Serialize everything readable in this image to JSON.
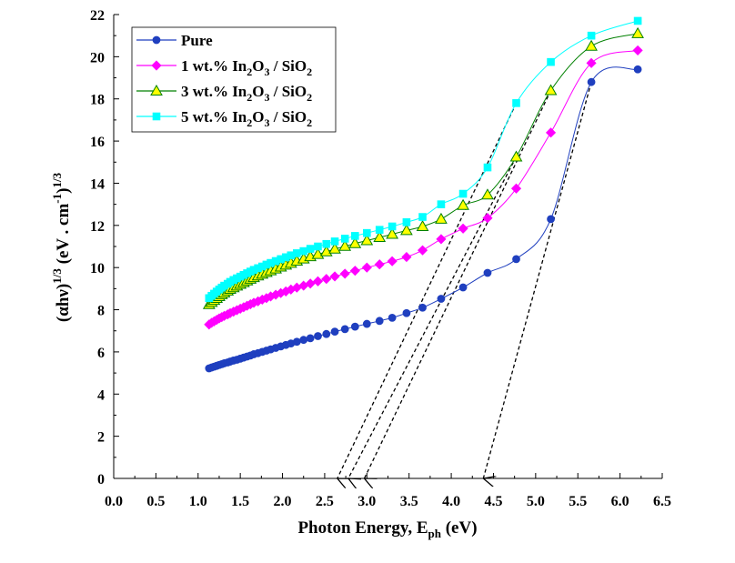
{
  "chart_data": {
    "type": "line",
    "xlabel": {
      "main": "Photon Energy, E",
      "sub": "ph",
      "unit": " (eV)"
    },
    "ylabel": {
      "parts": [
        "(αhν)",
        "1/3",
        " (eV . cm",
        "-1",
        ")",
        "1/3"
      ]
    },
    "xlim": [
      0.0,
      6.5
    ],
    "ylim": [
      0,
      22
    ],
    "xticks": [
      "0.0",
      "0.5",
      "1.0",
      "1.5",
      "2.0",
      "2.5",
      "3.0",
      "3.5",
      "4.0",
      "4.5",
      "5.0",
      "5.5",
      "6.0",
      "6.5"
    ],
    "yticks": [
      "0",
      "2",
      "4",
      "6",
      "8",
      "10",
      "12",
      "14",
      "16",
      "18",
      "20",
      "22"
    ],
    "grid": false,
    "legend_position": "top-left",
    "series": [
      {
        "name": "Pure",
        "legend": [
          "Pure"
        ],
        "color": "#1f3fbf",
        "marker": "circle",
        "x": [
          1.13,
          1.16,
          1.19,
          1.22,
          1.25,
          1.28,
          1.31,
          1.35,
          1.38,
          1.42,
          1.46,
          1.5,
          1.54,
          1.58,
          1.62,
          1.66,
          1.71,
          1.76,
          1.81,
          1.86,
          1.92,
          1.98,
          2.04,
          2.1,
          2.17,
          2.25,
          2.33,
          2.42,
          2.52,
          2.62,
          2.74,
          2.86,
          3.0,
          3.15,
          3.3,
          3.47,
          3.66,
          3.88,
          4.14,
          4.43,
          4.77,
          5.18,
          5.66,
          6.21
        ],
        "y": [
          5.22,
          5.26,
          5.3,
          5.34,
          5.38,
          5.42,
          5.46,
          5.5,
          5.54,
          5.59,
          5.63,
          5.68,
          5.73,
          5.78,
          5.83,
          5.89,
          5.94,
          6.0,
          6.06,
          6.12,
          6.19,
          6.26,
          6.33,
          6.4,
          6.48,
          6.57,
          6.65,
          6.75,
          6.85,
          6.96,
          7.08,
          7.2,
          7.33,
          7.47,
          7.62,
          7.84,
          8.1,
          8.52,
          9.06,
          9.75,
          10.4,
          12.3,
          18.8,
          19.4
        ]
      },
      {
        "name": "1 wt.% In2O3 / SiO2",
        "legend": [
          "1 wt.% In",
          "2",
          "O",
          "3",
          " / SiO",
          "2"
        ],
        "color": "#ff00ff",
        "marker": "diamond",
        "x": [
          1.13,
          1.16,
          1.19,
          1.22,
          1.25,
          1.28,
          1.31,
          1.35,
          1.38,
          1.42,
          1.46,
          1.5,
          1.54,
          1.58,
          1.62,
          1.66,
          1.71,
          1.76,
          1.81,
          1.86,
          1.92,
          1.98,
          2.04,
          2.1,
          2.17,
          2.25,
          2.33,
          2.42,
          2.52,
          2.62,
          2.74,
          2.86,
          3.0,
          3.15,
          3.3,
          3.47,
          3.66,
          3.88,
          4.14,
          4.43,
          4.77,
          5.18,
          5.66,
          6.21
        ],
        "y": [
          7.3,
          7.38,
          7.45,
          7.52,
          7.59,
          7.65,
          7.71,
          7.78,
          7.84,
          7.91,
          7.98,
          8.05,
          8.12,
          8.19,
          8.26,
          8.33,
          8.4,
          8.48,
          8.55,
          8.63,
          8.71,
          8.79,
          8.87,
          8.96,
          9.05,
          9.14,
          9.24,
          9.35,
          9.46,
          9.58,
          9.71,
          9.85,
          10.0,
          10.15,
          10.3,
          10.5,
          10.82,
          11.35,
          11.85,
          12.35,
          13.75,
          16.4,
          19.7,
          20.3
        ]
      },
      {
        "name": "3 wt.% In2O3 / SiO2",
        "legend": [
          "3 wt.% In",
          "2",
          "O",
          "3",
          " / SiO",
          "2"
        ],
        "color": "#008000",
        "fill": "#ffff00",
        "marker": "triangle",
        "x": [
          1.13,
          1.16,
          1.19,
          1.22,
          1.25,
          1.28,
          1.31,
          1.35,
          1.38,
          1.42,
          1.46,
          1.5,
          1.54,
          1.58,
          1.62,
          1.66,
          1.71,
          1.76,
          1.81,
          1.86,
          1.92,
          1.98,
          2.04,
          2.1,
          2.17,
          2.25,
          2.33,
          2.42,
          2.52,
          2.62,
          2.74,
          2.86,
          3.0,
          3.15,
          3.3,
          3.47,
          3.66,
          3.88,
          4.14,
          4.43,
          4.77,
          5.18,
          5.66,
          6.21
        ],
        "y": [
          8.25,
          8.35,
          8.45,
          8.54,
          8.63,
          8.72,
          8.8,
          8.89,
          8.97,
          9.05,
          9.13,
          9.21,
          9.29,
          9.37,
          9.45,
          9.53,
          9.61,
          9.69,
          9.77,
          9.85,
          9.94,
          10.03,
          10.12,
          10.21,
          10.31,
          10.41,
          10.52,
          10.63,
          10.75,
          10.88,
          11.01,
          11.14,
          11.28,
          11.43,
          11.58,
          11.76,
          11.95,
          12.3,
          12.95,
          13.45,
          15.25,
          18.4,
          20.5,
          21.1
        ]
      },
      {
        "name": "5 wt.% In2O3 / SiO2",
        "legend": [
          "5 wt.% In",
          "2",
          "O",
          "3",
          " / SiO",
          "2"
        ],
        "color": "#00ffff",
        "marker": "square",
        "x": [
          1.13,
          1.16,
          1.19,
          1.22,
          1.25,
          1.28,
          1.31,
          1.35,
          1.38,
          1.42,
          1.46,
          1.5,
          1.54,
          1.58,
          1.62,
          1.66,
          1.71,
          1.76,
          1.81,
          1.86,
          1.92,
          1.98,
          2.04,
          2.1,
          2.17,
          2.25,
          2.33,
          2.42,
          2.52,
          2.62,
          2.74,
          2.86,
          3.0,
          3.15,
          3.3,
          3.47,
          3.66,
          3.88,
          4.14,
          4.43,
          4.77,
          5.18,
          5.66,
          6.21
        ],
        "y": [
          8.55,
          8.66,
          8.76,
          8.86,
          8.96,
          9.05,
          9.14,
          9.23,
          9.32,
          9.41,
          9.49,
          9.57,
          9.65,
          9.73,
          9.81,
          9.89,
          9.97,
          10.05,
          10.14,
          10.22,
          10.31,
          10.4,
          10.49,
          10.58,
          10.68,
          10.78,
          10.89,
          11.0,
          11.12,
          11.24,
          11.37,
          11.5,
          11.64,
          11.79,
          11.95,
          12.15,
          12.4,
          13.0,
          13.5,
          14.75,
          17.8,
          19.75,
          21.0,
          21.7
        ]
      }
    ],
    "tangent_lines": [
      {
        "from": [
          4.77,
          17.8
        ],
        "to": [
          2.65,
          0.0
        ]
      },
      {
        "from": [
          4.77,
          15.25
        ],
        "to": [
          2.78,
          0.0
        ]
      },
      {
        "from": [
          5.18,
          18.4
        ],
        "to": [
          2.97,
          0.0
        ]
      },
      {
        "from": [
          5.66,
          18.8
        ],
        "to": [
          4.38,
          0.0
        ]
      }
    ]
  }
}
